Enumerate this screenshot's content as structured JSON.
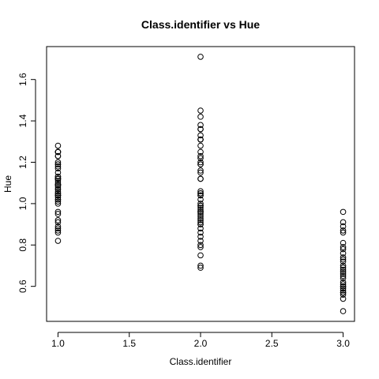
{
  "chart_data": {
    "type": "scatter",
    "title": "Class.identifier vs Hue",
    "x_label": "Class.identifier",
    "y_label": "Hue",
    "x": [
      1,
      1,
      1,
      1,
      1,
      1,
      1,
      1,
      1,
      1,
      1,
      1,
      1,
      1,
      1,
      1,
      1,
      1,
      1,
      1,
      1,
      1,
      1,
      1,
      1,
      1,
      1,
      1,
      1,
      1,
      1,
      1,
      1,
      1,
      1,
      1,
      1,
      1,
      1,
      1,
      1,
      1,
      1,
      1,
      1,
      1,
      1,
      1,
      1,
      1,
      2,
      2,
      2,
      2,
      2,
      2,
      2,
      2,
      2,
      2,
      2,
      2,
      2,
      2,
      2,
      2,
      2,
      2,
      2,
      2,
      2,
      2,
      2,
      2,
      2,
      2,
      2,
      2,
      2,
      2,
      2,
      2,
      2,
      2,
      2,
      2,
      2,
      2,
      2,
      2,
      2,
      2,
      2,
      2,
      2,
      2,
      2,
      2,
      2,
      2,
      3,
      3,
      3,
      3,
      3,
      3,
      3,
      3,
      3,
      3,
      3,
      3,
      3,
      3,
      3,
      3,
      3,
      3,
      3,
      3,
      3,
      3,
      3,
      3,
      3,
      3,
      3,
      3,
      3,
      3
    ],
    "values": [
      1.04,
      1.05,
      1.03,
      0.86,
      1.04,
      1.05,
      1.02,
      1.06,
      1.08,
      1.01,
      1.25,
      1.17,
      1.15,
      1.25,
      1.2,
      1.28,
      1.07,
      1.13,
      1.23,
      0.96,
      1.09,
      1.11,
      1.09,
      1.12,
      1.13,
      0.92,
      1.02,
      1.25,
      1.04,
      1.19,
      1.09,
      1.23,
      1.25,
      1.1,
      1.04,
      1.09,
      1.12,
      1.18,
      0.89,
      0.95,
      0.91,
      0.88,
      0.82,
      0.87,
      1.0,
      1.19,
      1.09,
      1.07,
      1.12,
      1.12,
      1.45,
      1.36,
      1.42,
      1.05,
      0.94,
      1.38,
      1.31,
      0.84,
      1.23,
      1.04,
      0.96,
      1.12,
      0.98,
      1.05,
      1.19,
      1.22,
      1.31,
      0.86,
      0.91,
      0.99,
      0.9,
      0.97,
      0.95,
      1.12,
      0.99,
      1.19,
      1.25,
      1.28,
      1.36,
      1.02,
      0.8,
      0.9,
      0.96,
      1.31,
      0.93,
      1.71,
      0.82,
      0.92,
      0.7,
      1.04,
      1.2,
      1.15,
      1.16,
      0.75,
      0.69,
      1.06,
      1.0,
      0.79,
      0.88,
      1.33,
      0.59,
      0.54,
      0.65,
      0.56,
      0.96,
      0.7,
      0.57,
      0.6,
      0.66,
      0.79,
      0.69,
      0.74,
      0.58,
      0.64,
      0.67,
      0.61,
      0.78,
      0.76,
      0.72,
      0.62,
      0.81,
      0.87,
      0.68,
      0.73,
      0.89,
      0.91,
      0.86,
      0.48,
      0.57,
      0.6
    ],
    "color": "#000000",
    "xlim": [
      0.92,
      3.08
    ],
    "ylim": [
      0.4308,
      1.7592
    ],
    "xticks": [
      {
        "value": 1,
        "label": "1.0"
      },
      1.5,
      {
        "value": 2,
        "label": "2.0"
      },
      2.5,
      {
        "value": 3,
        "label": "3.0"
      }
    ],
    "yticks": [
      0.6,
      0.8,
      {
        "value": 1,
        "label": "1.0"
      },
      1.2,
      1.4,
      1.6
    ]
  }
}
